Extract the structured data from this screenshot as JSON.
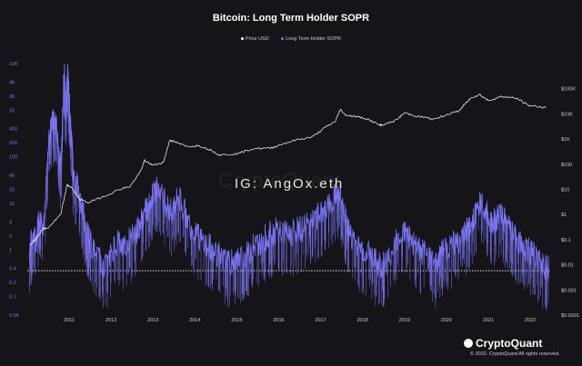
{
  "title": "Bitcoin: Long Term Holder SOPR",
  "legend": [
    {
      "name": "Price USD",
      "color": "#ffffff"
    },
    {
      "name": "Long Term Holder SOPR",
      "color": "#7b74f0"
    }
  ],
  "watermark": "CryptoQuant",
  "ig_tag": "IG: AngOx.eth",
  "brand": "CryptoQuant",
  "copyright": "© 2022. CryptoQuant All rights reserved.",
  "chart_data": {
    "type": "line",
    "x_ticks": [
      "2011",
      "2012",
      "2013",
      "2014",
      "2015",
      "2016",
      "2017",
      "2018",
      "2019",
      "2020",
      "2021",
      "2022"
    ],
    "x_range": [
      2010.5,
      2023.0
    ],
    "left_axis": {
      "scale": "log",
      "range": [
        0.04,
        10000
      ],
      "ticks": [
        "10K",
        "4K",
        "2K",
        "1K",
        "400",
        "200",
        "100",
        "40",
        "20",
        "10",
        "4",
        "2",
        "1",
        "0.4",
        "0.2",
        "0.1",
        "0.04"
      ],
      "values": [
        10000,
        4000,
        2000,
        1000,
        400,
        200,
        100,
        40,
        20,
        10,
        4,
        2,
        1,
        0.4,
        0.2,
        0.1,
        0.04
      ]
    },
    "right_axis": {
      "scale": "log",
      "range": [
        0.0001,
        1000000
      ],
      "ticks": [
        "$100K",
        "$10K",
        "$1K",
        "$100",
        "$10",
        "$1",
        "$0.1",
        "$0.01",
        "$0.001",
        "$0.0001"
      ],
      "values": [
        100000,
        10000,
        1000,
        100,
        10,
        1,
        0.1,
        0.01,
        0.001,
        0.0001
      ]
    },
    "reference_line": {
      "axis": "left",
      "value": 0.36,
      "style": "dotted",
      "color": "#ffffff"
    },
    "grid": false,
    "series": [
      {
        "name": "Price USD",
        "axis": "right",
        "color": "#ffffff",
        "x": [
          2010.55,
          2010.7,
          2010.85,
          2011.0,
          2011.3,
          2011.45,
          2011.55,
          2011.75,
          2011.95,
          2012.3,
          2012.7,
          2012.95,
          2013.2,
          2013.3,
          2013.5,
          2013.75,
          2013.9,
          2014.0,
          2014.3,
          2014.6,
          2014.9,
          2015.1,
          2015.5,
          2015.9,
          2016.3,
          2016.6,
          2016.95,
          2017.3,
          2017.6,
          2017.85,
          2017.97,
          2018.1,
          2018.3,
          2018.6,
          2018.9,
          2019.0,
          2019.3,
          2019.5,
          2019.8,
          2020.0,
          2020.2,
          2020.5,
          2020.8,
          2020.95,
          2021.1,
          2021.3,
          2021.5,
          2021.8,
          2021.95,
          2022.2,
          2022.45,
          2022.7,
          2022.9
        ],
        "y": [
          0.06,
          0.1,
          0.25,
          0.3,
          1.0,
          15,
          12,
          4,
          3,
          5,
          10,
          13,
          50,
          140,
          90,
          120,
          900,
          800,
          500,
          550,
          350,
          230,
          260,
          420,
          430,
          650,
          950,
          1200,
          2800,
          5000,
          15000,
          9000,
          8000,
          6500,
          3600,
          3700,
          5500,
          11000,
          8000,
          7200,
          6000,
          9300,
          13000,
          25000,
          45000,
          58000,
          34000,
          48000,
          47000,
          40000,
          22000,
          19500,
          17000
        ]
      },
      {
        "name": "Long Term Holder SOPR",
        "axis": "left",
        "color": "#7b74f0",
        "x": [
          2010.55,
          2010.62,
          2010.7,
          2010.8,
          2010.9,
          2011.0,
          2011.1,
          2011.2,
          2011.3,
          2011.38,
          2011.42,
          2011.46,
          2011.5,
          2011.55,
          2011.6,
          2011.7,
          2011.8,
          2011.9,
          2012.0,
          2012.2,
          2012.4,
          2012.6,
          2012.8,
          2013.0,
          2013.15,
          2013.3,
          2013.45,
          2013.6,
          2013.8,
          2013.95,
          2014.1,
          2014.3,
          2014.5,
          2014.7,
          2014.9,
          2015.1,
          2015.3,
          2015.5,
          2015.7,
          2015.9,
          2016.1,
          2016.3,
          2016.5,
          2016.7,
          2016.9,
          2017.1,
          2017.3,
          2017.5,
          2017.7,
          2017.85,
          2017.95,
          2018.05,
          2018.2,
          2018.4,
          2018.6,
          2018.8,
          2018.95,
          2019.1,
          2019.3,
          2019.5,
          2019.7,
          2019.9,
          2020.1,
          2020.25,
          2020.4,
          2020.6,
          2020.8,
          2020.95,
          2021.05,
          2021.2,
          2021.35,
          2021.5,
          2021.65,
          2021.8,
          2021.95,
          2022.1,
          2022.25,
          2022.4,
          2022.55,
          2022.7,
          2022.85,
          2022.95
        ],
        "y": [
          0.9,
          2,
          1.5,
          6,
          3,
          200,
          600,
          400,
          50,
          8000,
          900,
          7000,
          1500,
          300,
          40,
          25,
          8,
          3,
          1.5,
          0.6,
          0.4,
          1.5,
          1.2,
          1.8,
          3,
          6,
          12,
          22,
          10,
          6,
          14,
          5,
          2.2,
          1.5,
          1.1,
          0.7,
          0.5,
          0.6,
          0.7,
          1.2,
          1.6,
          2.2,
          2.8,
          2.1,
          2.5,
          3,
          4,
          6,
          9,
          14,
          16,
          6,
          2,
          1.1,
          0.9,
          0.55,
          0.45,
          0.6,
          1.6,
          2.5,
          1.5,
          0.9,
          0.7,
          0.5,
          0.9,
          1.2,
          1.6,
          2.2,
          3,
          6,
          12,
          5,
          4,
          6,
          3,
          2,
          1.5,
          1.1,
          0.8,
          0.6,
          0.45,
          0.4
        ]
      }
    ]
  }
}
